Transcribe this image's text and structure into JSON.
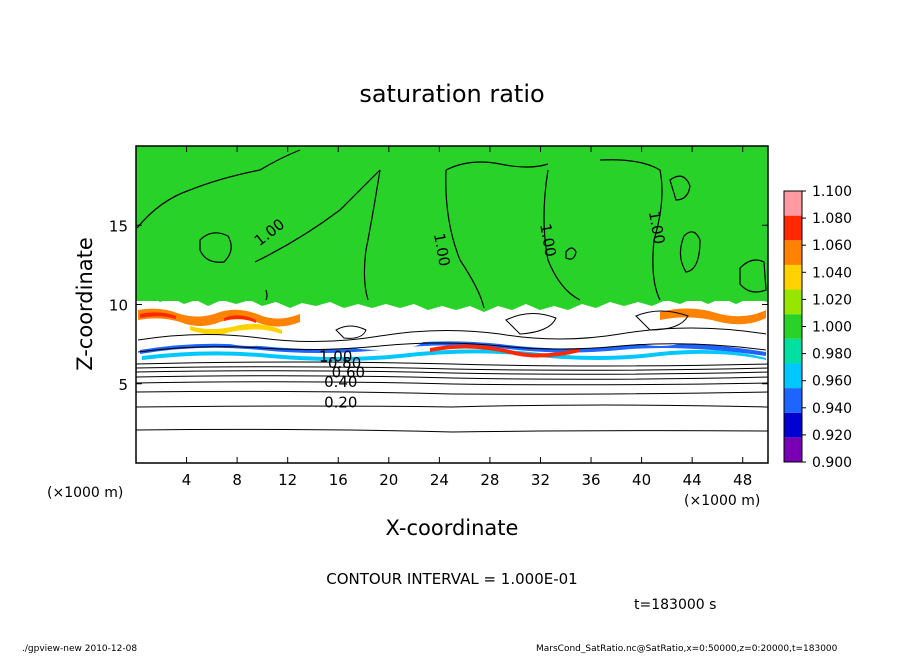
{
  "chart_data": {
    "type": "heatmap",
    "title": "saturation ratio",
    "xlabel": "X-coordinate",
    "ylabel": "Z-coordinate",
    "x_unit_left": "(×1000 m)",
    "x_unit_right": "(×1000 m)",
    "xlim": [
      0,
      50
    ],
    "ylim": [
      0,
      20
    ],
    "x_ticks": [
      4,
      8,
      12,
      16,
      20,
      24,
      28,
      32,
      36,
      40,
      44,
      48
    ],
    "y_ticks": [
      5,
      10,
      15
    ],
    "colorbar": {
      "levels": [
        "0.900",
        "0.920",
        "0.940",
        "0.960",
        "0.980",
        "1.000",
        "1.020",
        "1.040",
        "1.060",
        "1.080",
        "1.100"
      ],
      "colors": [
        "#7a00b4",
        "#0000d0",
        "#1e64ff",
        "#00c8ff",
        "#00e0a0",
        "#28d228",
        "#96e600",
        "#ffd200",
        "#ff8200",
        "#ff2800",
        "#ff9aa2"
      ]
    },
    "contour_labels": [
      {
        "text": "1.00",
        "x": 10.8,
        "z": 14.3
      },
      {
        "text": "1.00",
        "x": 23.8,
        "z": 13.4
      },
      {
        "text": "1.00",
        "x": 32.2,
        "z": 14.0
      },
      {
        "text": "1.00",
        "x": 40.8,
        "z": 14.8
      },
      {
        "text": "1.00",
        "x": 15.8,
        "z": 6.4
      },
      {
        "text": "0.80",
        "x": 16.5,
        "z": 6.0
      },
      {
        "text": "0.60",
        "x": 16.8,
        "z": 5.4
      },
      {
        "text": "0.40",
        "x": 16.2,
        "z": 4.8
      },
      {
        "text": "0.20",
        "x": 16.2,
        "z": 3.5
      }
    ],
    "contour_interval_text": "CONTOUR INTERVAL = 1.000E-01",
    "time_text": "t=183000 s"
  },
  "footer": {
    "left": "./gpview-new   2010-12-08",
    "right": "MarsCond_SatRatio.nc@SatRatio,x=0:50000,z=0:20000,t=183000"
  }
}
